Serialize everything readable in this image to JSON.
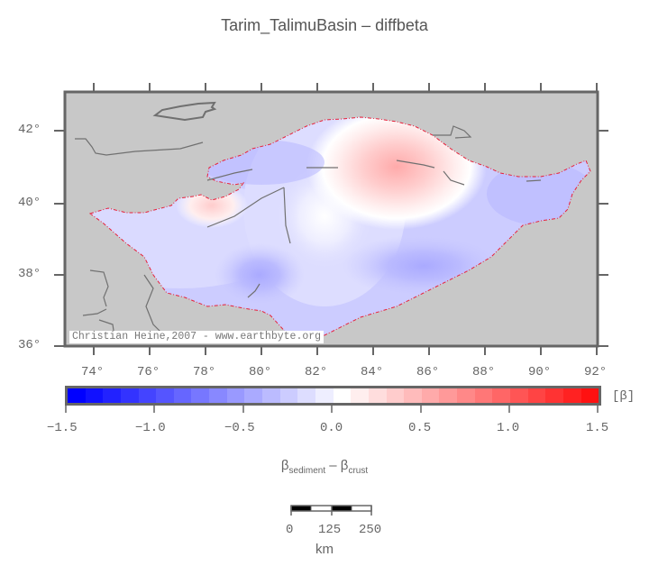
{
  "title": "Tarim_TalimuBasin – diffbeta",
  "map": {
    "region": "Tarim_TalimuBasin",
    "variable": "diffbeta",
    "lon_range": [
      73,
      92
    ],
    "lat_range": [
      36,
      43
    ],
    "x_ticks": [
      "74°",
      "76°",
      "78°",
      "80°",
      "82°",
      "84°",
      "86°",
      "88°",
      "90°",
      "92°"
    ],
    "y_ticks": [
      "42°",
      "40°",
      "38°",
      "36°"
    ],
    "credit": "Christian Heine,2007 - www.earthbyte.org",
    "background_color": "#c8c8c8",
    "outline_color": "#e8203a"
  },
  "colorbar": {
    "unit_label": "[β]",
    "tick_labels": [
      "−1.5",
      "−1.0",
      "−0.5",
      "0.0",
      "0.5",
      "1.0",
      "1.5"
    ],
    "min": -1.5,
    "max": 1.5,
    "step": 0.1,
    "colors": [
      "#0000ff",
      "#1111ff",
      "#2222ff",
      "#3333ff",
      "#4444ff",
      "#5555ff",
      "#6666ff",
      "#7777ff",
      "#8888ff",
      "#9999ff",
      "#aaaaff",
      "#bbbbff",
      "#ccccff",
      "#ddddff",
      "#eeeeff",
      "#ffffff",
      "#ffeeee",
      "#ffdddd",
      "#ffcccc",
      "#ffbbbb",
      "#ffaaaa",
      "#ff9999",
      "#ff8888",
      "#ff7777",
      "#ff6666",
      "#ff5555",
      "#ff4444",
      "#ff3333",
      "#ff2222",
      "#ff1111"
    ]
  },
  "subtitle": {
    "beta1": "β",
    "sub1": "sediment",
    "dash": " – ",
    "beta2": "β",
    "sub2": "crust"
  },
  "scalebar": {
    "labels": [
      "0",
      "125",
      "250"
    ],
    "unit": "km"
  }
}
